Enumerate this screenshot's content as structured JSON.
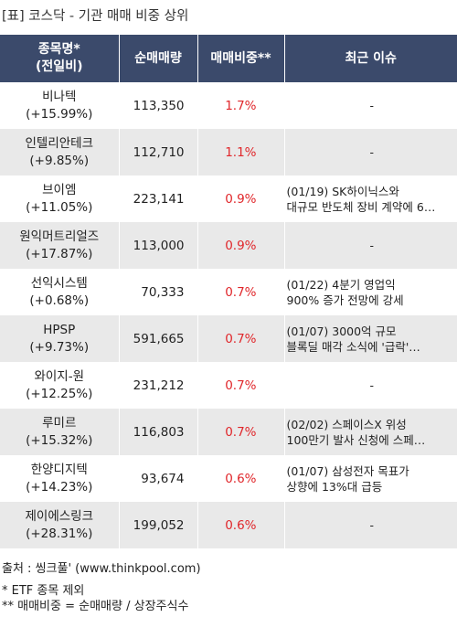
{
  "title": "[표] 코스닥 - 기관 매매 비중 상위",
  "headers": {
    "name_line1": "종목명*",
    "name_line2": "(전일비)",
    "volume": "순매매량",
    "ratio": "매매비중**",
    "issue": "최근 이슈"
  },
  "rows": [
    {
      "name": "비나텍",
      "change": "(+15.99%)",
      "volume": "113,350",
      "ratio": "1.7%",
      "issue1": "-",
      "issue2": ""
    },
    {
      "name": "인텔리안테크",
      "change": "(+9.85%)",
      "volume": "112,710",
      "ratio": "1.1%",
      "issue1": "-",
      "issue2": ""
    },
    {
      "name": "브이엠",
      "change": "(+11.05%)",
      "volume": "223,141",
      "ratio": "0.9%",
      "issue1": "(01/19) SK하이닉스와",
      "issue2": "대규모 반도체 장비 계약에 6…"
    },
    {
      "name": "원익머트리얼즈",
      "change": "(+17.87%)",
      "volume": "113,000",
      "ratio": "0.9%",
      "issue1": "-",
      "issue2": ""
    },
    {
      "name": "선익시스템",
      "change": "(+0.68%)",
      "volume": "70,333",
      "ratio": "0.7%",
      "issue1": "(01/22) 4분기 영업익",
      "issue2": "900% 증가 전망에 강세"
    },
    {
      "name": "HPSP",
      "change": "(+9.73%)",
      "volume": "591,665",
      "ratio": "0.7%",
      "issue1": "(01/07) 3000억 규모",
      "issue2": " 블록딜 매각 소식에 '급락'…"
    },
    {
      "name": "와이지-원",
      "change": "(+12.25%)",
      "volume": "231,212",
      "ratio": "0.7%",
      "issue1": "-",
      "issue2": ""
    },
    {
      "name": "루미르",
      "change": "(+15.32%)",
      "volume": "116,803",
      "ratio": "0.7%",
      "issue1": "(02/02) 스페이스X 위성",
      "issue2": " 100만기 발사 신청에 스페…"
    },
    {
      "name": "한양디지텍",
      "change": "(+14.23%)",
      "volume": "93,674",
      "ratio": "0.6%",
      "issue1": "(01/07) 삼성전자 목표가",
      "issue2": " 상향에 13%대 급등"
    },
    {
      "name": "제이에스링크",
      "change": "(+28.31%)",
      "volume": "199,052",
      "ratio": "0.6%",
      "issue1": "-",
      "issue2": ""
    }
  ],
  "footer": {
    "source": "출처 : 씽크풀' (www.thinkpool.com)",
    "note1": "* ETF 종목 제외",
    "note2": "** 매매비중 = 순매매량 / 상장주식수"
  }
}
